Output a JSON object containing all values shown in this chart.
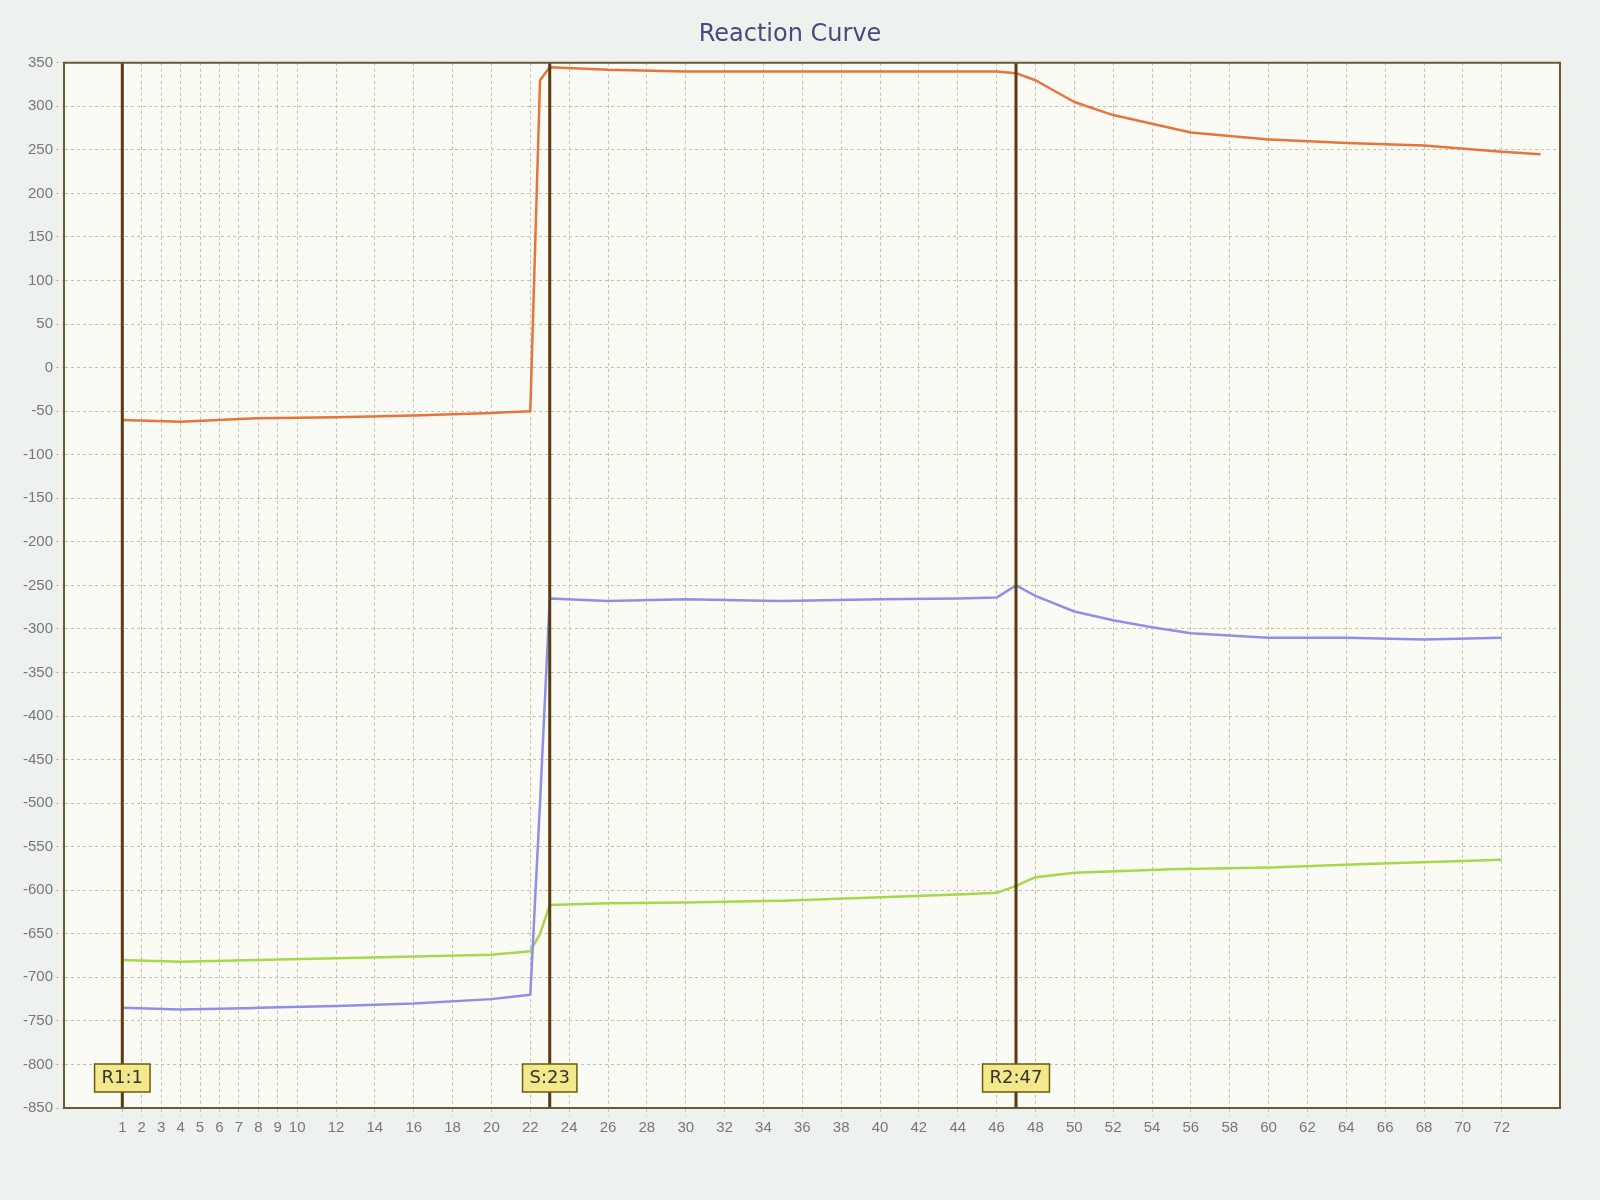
{
  "chart_data": {
    "type": "line",
    "title": "Reaction Curve",
    "xlim": [
      -2,
      75
    ],
    "ylim": [
      -850,
      350
    ],
    "xticks": [
      1,
      2,
      3,
      4,
      5,
      6,
      7,
      8,
      9,
      10,
      12,
      14,
      16,
      18,
      20,
      22,
      24,
      26,
      28,
      30,
      32,
      34,
      36,
      38,
      40,
      42,
      44,
      46,
      48,
      50,
      52,
      54,
      56,
      58,
      60,
      62,
      64,
      66,
      68,
      70,
      72
    ],
    "yticks": [
      350,
      300,
      250,
      200,
      150,
      100,
      50,
      0,
      -50,
      -100,
      -150,
      -200,
      -250,
      -300,
      -350,
      -400,
      -450,
      -500,
      -550,
      -600,
      -650,
      -700,
      -750,
      -800,
      -850
    ],
    "grid": true,
    "legend": false,
    "marker": "none",
    "line_style": "solid",
    "series": [
      {
        "color": "#e8743b",
        "x": [
          1,
          4,
          8,
          12,
          16,
          20,
          22,
          22.5,
          23,
          26,
          30,
          35,
          40,
          44,
          46,
          47,
          48,
          50,
          52,
          54,
          56,
          60,
          64,
          68,
          72,
          74
        ],
        "values": [
          -60,
          -62,
          -58,
          -57,
          -55,
          -52,
          -50,
          330,
          345,
          342,
          340,
          340,
          340,
          340,
          340,
          338,
          330,
          305,
          290,
          280,
          270,
          262,
          258,
          255,
          248,
          245
        ]
      },
      {
        "color": "#8f8fe8",
        "x": [
          1,
          4,
          8,
          12,
          16,
          20,
          22,
          22.5,
          23,
          26,
          30,
          35,
          40,
          44,
          46,
          47,
          48,
          50,
          52,
          54,
          56,
          60,
          64,
          68,
          72
        ],
        "values": [
          -735,
          -737,
          -735,
          -733,
          -730,
          -725,
          -720,
          -500,
          -265,
          -268,
          -266,
          -268,
          -266,
          -265,
          -264,
          -250,
          -262,
          -280,
          -290,
          -298,
          -305,
          -310,
          -310,
          -312,
          -310
        ]
      },
      {
        "color": "#a6d84a",
        "x": [
          1,
          4,
          8,
          12,
          16,
          20,
          22,
          22.5,
          23,
          26,
          30,
          35,
          40,
          44,
          46,
          47,
          48,
          50,
          55,
          60,
          65,
          72
        ],
        "values": [
          -680,
          -682,
          -680,
          -678,
          -676,
          -674,
          -670,
          -650,
          -617,
          -615,
          -614,
          -612,
          -608,
          -605,
          -603,
          -595,
          -585,
          -580,
          -576,
          -574,
          -570,
          -565
        ]
      }
    ],
    "ref_lines": [
      {
        "axis": "x",
        "value": 1,
        "label": "R1:1",
        "color": "#5a3a10"
      },
      {
        "axis": "x",
        "value": 23,
        "label": "S:23",
        "color": "#5a3a10"
      },
      {
        "axis": "x",
        "value": 47,
        "label": "R2:47",
        "color": "#5a3a10"
      }
    ]
  }
}
